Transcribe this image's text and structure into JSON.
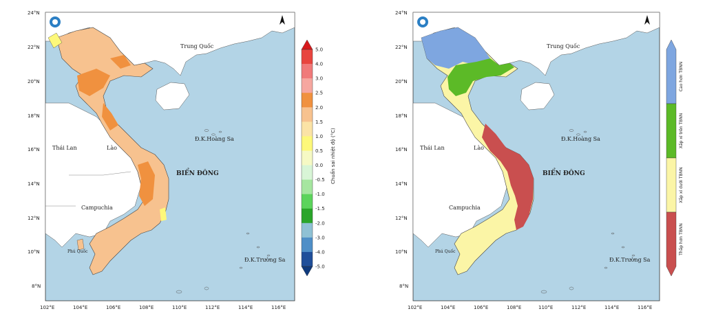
{
  "left_map": {
    "place_labels": {
      "china": "Trung Quốc",
      "thailand": "Thái Lan",
      "laos": "Lào",
      "cambodia": "Campuchia",
      "phu_quoc": "Phú Quốc",
      "paracel": "Đ.K.Hoàng Sa",
      "spratly": "Đ.K.Trường Sa",
      "east_sea": "BIỂN ĐÔNG"
    },
    "lat_ticks": [
      "24°N",
      "22°N",
      "20°N",
      "18°N",
      "16°N",
      "14°N",
      "12°N",
      "10°N",
      "8°N"
    ],
    "lon_ticks": [
      "102°E",
      "104°E",
      "106°E",
      "108°E",
      "110°E",
      "112°E",
      "114°E",
      "116°E"
    ],
    "colorbar": {
      "title": "Chuẩn sai nhiệt độ (°C)",
      "labels": [
        "5.0",
        "4.0",
        "3.0",
        "2.5",
        "2.0",
        "1.5",
        "1.0",
        "0.5",
        "0.0",
        "-0.5",
        "-1.0",
        "-1.5",
        "-2.0",
        "-3.0",
        "-4.0",
        "-5.0"
      ],
      "colors": [
        "#d7191c",
        "#e8453f",
        "#f07a7a",
        "#f6a7a0",
        "#f0913f",
        "#f7c28f",
        "#fbe3a6",
        "#fdf87a",
        "#f6f9c4",
        "#d8f5d6",
        "#a6e6a0",
        "#5cd45c",
        "#2aa52a",
        "#8fc1d4",
        "#4f8fc7",
        "#1f4f9a",
        "#0f3a7d"
      ]
    },
    "legend_colors": {
      "ocean": "#b3d4e6",
      "land": "#ffffff"
    }
  },
  "right_map": {
    "place_labels": {
      "china": "Trung Quốc",
      "thailand": "Thái Lan",
      "laos": "Lào",
      "cambodia": "Campuchia",
      "phu_quoc": "Phú Quốc",
      "paracel": "Đ.K.Hoàng Sa",
      "spratly": "Đ.K.Trường Sa",
      "east_sea": "BIỂN ĐÔNG"
    },
    "lat_ticks": [
      "24°N",
      "22°N",
      "20°N",
      "18°N",
      "16°N",
      "14°N",
      "12°N",
      "10°N",
      "8°N"
    ],
    "lon_ticks": [
      "102°E",
      "104°E",
      "106°E",
      "108°E",
      "110°E",
      "112°E",
      "114°E",
      "116°E"
    ],
    "legend": {
      "items": [
        {
          "label": "Cao hơn TBNN",
          "color": "#7ea6e0"
        },
        {
          "label": "Xấp xỉ trên TBNN",
          "color": "#5cba27"
        },
        {
          "label": "Xấp xỉ dưới TBNN",
          "color": "#fbf5a6"
        },
        {
          "label": "Thấp hơn TBNN",
          "color": "#c94f4f"
        }
      ]
    }
  }
}
